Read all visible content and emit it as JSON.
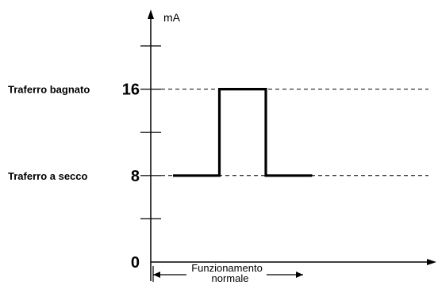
{
  "chart_data": {
    "type": "line",
    "y_unit": "mA",
    "ylim": [
      0,
      20
    ],
    "y_ticks": [
      0,
      4,
      8,
      12,
      16,
      20
    ],
    "y_tick_labels": [
      {
        "value": 0,
        "text": "0"
      },
      {
        "value": 8,
        "text": "8"
      },
      {
        "value": 16,
        "text": "16"
      }
    ],
    "reference_lines": [
      {
        "value": 16,
        "label": "Traferro bagnato"
      },
      {
        "value": 8,
        "label": "Traferro a secco"
      }
    ],
    "series": [
      {
        "points": [
          {
            "t": 0,
            "y": 8
          },
          {
            "t": 1,
            "y": 8
          },
          {
            "t": 1,
            "y": 16
          },
          {
            "t": 2,
            "y": 16
          },
          {
            "t": 2,
            "y": 8
          },
          {
            "t": 3,
            "y": 8
          }
        ]
      }
    ],
    "span_annotation": {
      "line1": "Funzionamento",
      "line2": "normale"
    },
    "grid": false
  }
}
